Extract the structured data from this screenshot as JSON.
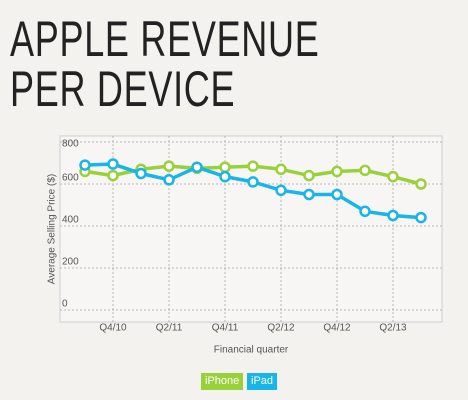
{
  "chart_data": {
    "type": "line",
    "title": "APPLE REVENUE PER DEVICE",
    "x_label": "Financial quarter",
    "y_label": "Average Selling Price ($)",
    "categories": [
      null,
      "Q4/10",
      null,
      "Q2/11",
      null,
      "Q4/11",
      null,
      "Q2/12",
      null,
      "Q4/12",
      null,
      "Q2/13",
      null
    ],
    "series": [
      {
        "name": "iPhone",
        "color": "#98d13a",
        "values": [
          660,
          640,
          670,
          685,
          675,
          680,
          685,
          670,
          640,
          660,
          665,
          635,
          600
        ]
      },
      {
        "name": "iPad",
        "color": "#19b4e8",
        "values": [
          690,
          695,
          650,
          620,
          680,
          635,
          610,
          570,
          550,
          550,
          470,
          450,
          440
        ]
      }
    ],
    "ylim": [
      0,
      800
    ],
    "yticks": [
      0,
      200,
      400,
      600,
      800
    ],
    "grid": true
  }
}
